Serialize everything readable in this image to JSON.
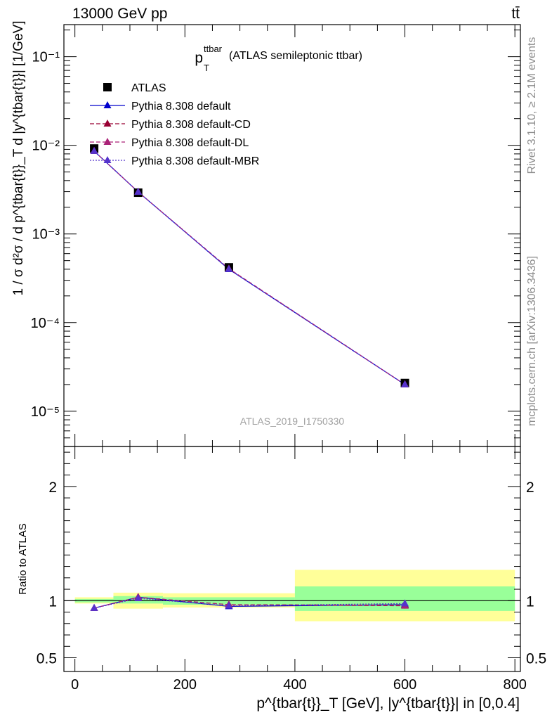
{
  "header": {
    "left": "13000 GeV pp",
    "right": "tt̄"
  },
  "side_labels": {
    "rivet": "Rivet 3.1.10, ≥ 2.1M events",
    "mcplots": "mcplots.cern.ch [arXiv:1306.3436]"
  },
  "chart_data": [
    {
      "type": "line",
      "title": "(ATLAS semileptonic ttbar)",
      "title_symbol": "p",
      "title_symbol_sup": "ttbar",
      "title_symbol_sub": "T",
      "watermark": "ATLAS_2019_I1750330",
      "ylabel": "1 / σ d²σ / d p^{tbar{t}}_T d |y^{tbar{t}}| [1/GeV]",
      "yscale": "log",
      "xlim": [
        -20,
        810
      ],
      "ylim": [
        4e-06,
        0.23
      ],
      "y_ticks": [
        {
          "value": 1e-05,
          "label": "10⁻⁵"
        },
        {
          "value": 0.0001,
          "label": "10⁻⁴"
        },
        {
          "value": 0.001,
          "label": "10⁻³"
        },
        {
          "value": 0.01,
          "label": "10⁻²"
        },
        {
          "value": 0.1,
          "label": "10⁻¹"
        }
      ],
      "legend_position": "top-left",
      "x": [
        35,
        115,
        280,
        600
      ],
      "x_bins": [
        [
          0,
          70
        ],
        [
          70,
          160
        ],
        [
          160,
          400
        ],
        [
          400,
          800
        ]
      ],
      "series": [
        {
          "name": "ATLAS",
          "values": [
            0.0092,
            0.00292,
            0.00042,
            2.08e-05
          ],
          "marker": "square",
          "color": "#000000"
        },
        {
          "name": "Pythia 8.308 default",
          "values": [
            0.0086,
            0.00298,
            0.000399,
            2e-05
          ],
          "marker": "triangle",
          "line": "solid",
          "color": "#0000cc"
        },
        {
          "name": "Pythia 8.308 default-CD",
          "values": [
            0.0086,
            0.00298,
            0.000405,
            2e-05
          ],
          "marker": "triangle",
          "line": "dashed",
          "color": "#990033"
        },
        {
          "name": "Pythia 8.308 default-DL",
          "values": [
            0.0086,
            0.00298,
            0.000405,
            2e-05
          ],
          "marker": "triangle",
          "line": "dashed",
          "color": "#aa2277"
        },
        {
          "name": "Pythia 8.308 default-MBR",
          "values": [
            0.0086,
            0.00298,
            0.000401,
            2e-05
          ],
          "marker": "triangle",
          "line": "dotted",
          "color": "#5533cc"
        }
      ]
    },
    {
      "type": "line",
      "ylabel": "Ratio to ATLAS",
      "xlabel": "p^{tbar{t}}_T [GeV], |y^{tbar{t}}| in [0,0.4]",
      "xlim": [
        -20,
        810
      ],
      "ylim": [
        0.38,
        2.35
      ],
      "x_ticks": [
        0,
        200,
        400,
        600,
        800
      ],
      "y_ticks": [
        0.5,
        1,
        2
      ],
      "x": [
        35,
        115,
        280,
        600
      ],
      "bands": [
        {
          "x0": 0,
          "x1": 70,
          "stat_lo": 0.985,
          "stat_hi": 1.015,
          "tot_lo": 0.975,
          "tot_hi": 1.03
        },
        {
          "x0": 70,
          "x1": 160,
          "stat_lo": 0.975,
          "stat_hi": 1.04,
          "tot_lo": 0.93,
          "tot_hi": 1.07
        },
        {
          "x0": 160,
          "x1": 400,
          "stat_lo": 0.965,
          "stat_hi": 1.03,
          "tot_lo": 0.94,
          "tot_hi": 1.065
        },
        {
          "x0": 400,
          "x1": 800,
          "stat_lo": 0.91,
          "stat_hi": 1.125,
          "tot_lo": 0.82,
          "tot_hi": 1.27
        }
      ],
      "series": [
        {
          "name": "Pythia 8.308 default",
          "values": [
            0.935,
            1.03,
            0.95,
            0.965
          ],
          "errors": [
            0.005,
            0.01,
            0.01,
            0.025
          ],
          "line": "solid",
          "color": "#0000cc"
        },
        {
          "name": "Pythia 8.308 default-CD",
          "values": [
            0.935,
            1.03,
            0.965,
            0.96
          ],
          "errors": [
            0.005,
            0.01,
            0.01,
            0.025
          ],
          "line": "dashed",
          "color": "#990033"
        },
        {
          "name": "Pythia 8.308 default-DL",
          "values": [
            0.935,
            1.03,
            0.965,
            0.955
          ],
          "errors": [
            0.005,
            0.01,
            0.01,
            0.025
          ],
          "line": "dashed",
          "color": "#aa2277"
        },
        {
          "name": "Pythia 8.308 default-MBR",
          "values": [
            0.935,
            1.02,
            0.955,
            0.975
          ],
          "errors": [
            0.005,
            0.01,
            0.01,
            0.025
          ],
          "line": "dotted",
          "color": "#5533cc"
        }
      ]
    }
  ]
}
